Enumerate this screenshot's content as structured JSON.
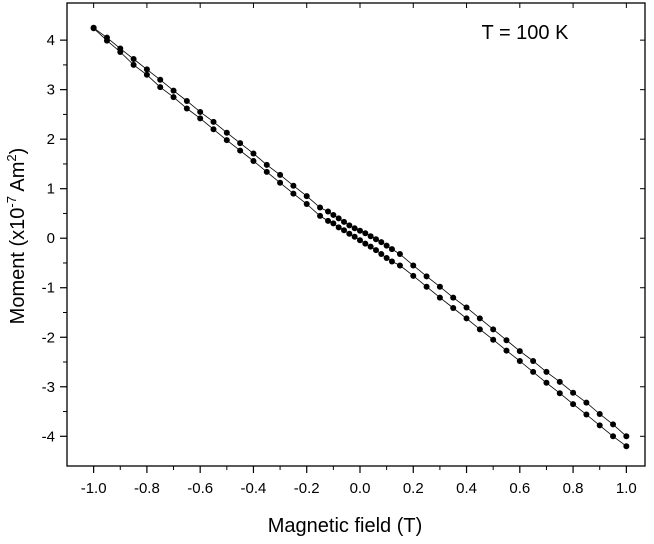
{
  "chart_data": {
    "type": "scatter",
    "title": "",
    "xlabel": "Magnetic field (T)",
    "ylabel_main": "Moment (x10",
    "ylabel_exp1": "-7",
    "ylabel_mid": " Am",
    "ylabel_exp2": "2",
    "ylabel_end": ")",
    "annotation": "T = 100 K",
    "xlim": [
      -1.1,
      1.07
    ],
    "ylim": [
      -4.6,
      4.75
    ],
    "xticks": [
      -1.0,
      -0.8,
      -0.6,
      -0.4,
      -0.2,
      0.0,
      0.2,
      0.4,
      0.6,
      0.8,
      1.0
    ],
    "xtick_labels": [
      "-1.0",
      "-0.8",
      "-0.6",
      "-0.4",
      "-0.2",
      "0.0",
      "0.2",
      "0.4",
      "0.6",
      "0.8",
      "1.0"
    ],
    "yticks": [
      -4,
      -3,
      -2,
      -1,
      0,
      1,
      2,
      3,
      4
    ],
    "ytick_labels": [
      "-4",
      "-3",
      "-2",
      "-1",
      "0",
      "1",
      "2",
      "3",
      "4"
    ],
    "grid": false,
    "marker_color": "#000000",
    "series": [
      {
        "x": [
          -1.0,
          -0.95,
          -0.9,
          -0.85,
          -0.8,
          -0.75,
          -0.7,
          -0.65,
          -0.6,
          -0.55,
          -0.5,
          -0.45,
          -0.4,
          -0.35,
          -0.3,
          -0.25,
          -0.2,
          -0.15,
          -0.12,
          -0.1,
          -0.08,
          -0.06,
          -0.04,
          -0.02,
          0.0,
          0.02,
          0.04,
          0.06,
          0.08,
          0.1,
          0.12,
          0.15,
          0.2,
          0.25,
          0.3,
          0.35,
          0.4,
          0.45,
          0.5,
          0.55,
          0.6,
          0.65,
          0.7,
          0.75,
          0.8,
          0.85,
          0.9,
          0.95,
          1.0
        ],
        "y": [
          4.24,
          3.99,
          3.76,
          3.5,
          3.3,
          3.05,
          2.85,
          2.62,
          2.42,
          2.2,
          1.98,
          1.77,
          1.56,
          1.34,
          1.12,
          0.9,
          0.69,
          0.45,
          0.35,
          0.3,
          0.22,
          0.16,
          0.09,
          0.03,
          -0.04,
          -0.11,
          -0.17,
          -0.24,
          -0.32,
          -0.4,
          -0.47,
          -0.55,
          -0.76,
          -0.98,
          -1.2,
          -1.41,
          -1.62,
          -1.84,
          -2.05,
          -2.27,
          -2.48,
          -2.7,
          -2.92,
          -3.13,
          -3.35,
          -3.56,
          -3.78,
          -4.0,
          -4.2
        ]
      },
      {
        "x": [
          1.0,
          0.95,
          0.9,
          0.85,
          0.8,
          0.75,
          0.7,
          0.65,
          0.6,
          0.55,
          0.5,
          0.45,
          0.4,
          0.35,
          0.3,
          0.25,
          0.2,
          0.15,
          0.12,
          0.1,
          0.08,
          0.06,
          0.04,
          0.02,
          0.0,
          -0.02,
          -0.04,
          -0.06,
          -0.08,
          -0.1,
          -0.12,
          -0.15,
          -0.2,
          -0.25,
          -0.3,
          -0.35,
          -0.4,
          -0.45,
          -0.5,
          -0.55,
          -0.6,
          -0.65,
          -0.7,
          -0.75,
          -0.8,
          -0.85,
          -0.9,
          -0.95,
          -1.0
        ],
        "y": [
          -4.0,
          -3.76,
          -3.55,
          -3.32,
          -3.12,
          -2.9,
          -2.7,
          -2.48,
          -2.28,
          -2.06,
          -1.84,
          -1.62,
          -1.4,
          -1.2,
          -0.98,
          -0.77,
          -0.55,
          -0.32,
          -0.22,
          -0.15,
          -0.08,
          -0.02,
          0.04,
          0.1,
          0.15,
          0.2,
          0.26,
          0.33,
          0.4,
          0.47,
          0.54,
          0.62,
          0.85,
          1.06,
          1.28,
          1.48,
          1.71,
          1.92,
          2.13,
          2.35,
          2.55,
          2.77,
          2.98,
          3.2,
          3.41,
          3.62,
          3.83,
          4.05,
          4.25
        ]
      }
    ]
  }
}
